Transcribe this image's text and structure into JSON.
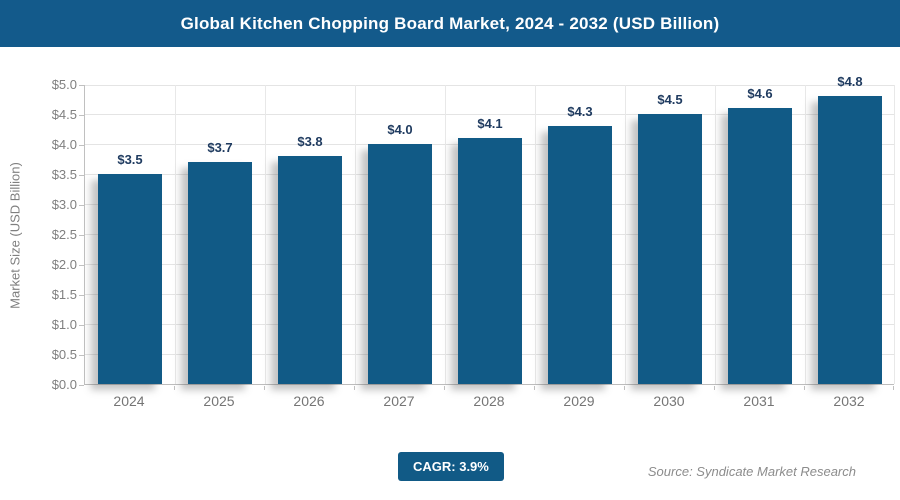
{
  "header": {
    "title": "Global Kitchen Chopping Board Market, 2024 - 2032 (USD Billion)",
    "bg_color": "#135A8B",
    "text_color": "#FFFFFF"
  },
  "chart_data": {
    "type": "bar",
    "title": "Global Kitchen Chopping Board Market, 2024 - 2032 (USD Billion)",
    "categories": [
      "2024",
      "2025",
      "2026",
      "2027",
      "2028",
      "2029",
      "2030",
      "2031",
      "2032"
    ],
    "values": [
      3.5,
      3.7,
      3.8,
      4.0,
      4.1,
      4.3,
      4.5,
      4.6,
      4.8
    ],
    "bar_labels": [
      "$3.5",
      "$3.7",
      "$3.8",
      "$4.0",
      "$4.1",
      "$4.3",
      "$4.5",
      "$4.6",
      "$4.8"
    ],
    "xlabel": "",
    "ylabel": "Market Size (USD Billion)",
    "ylim": [
      0,
      5.0
    ],
    "ytick_step": 0.5,
    "ytick_labels": [
      "$0.0",
      "$0.5",
      "$1.0",
      "$1.5",
      "$2.0",
      "$2.5",
      "$3.0",
      "$3.5",
      "$4.0",
      "$4.5",
      "$5.0"
    ],
    "grid": true,
    "legend": false,
    "bar_color": "#115A86",
    "label_color": "#1E3A5F",
    "axis_text_color": "#7F7F7F"
  },
  "footer": {
    "cagr_label": "CAGR: 3.9%",
    "cagr_bg_color": "#115A86",
    "source": "Source: Syndicate Market Research"
  }
}
